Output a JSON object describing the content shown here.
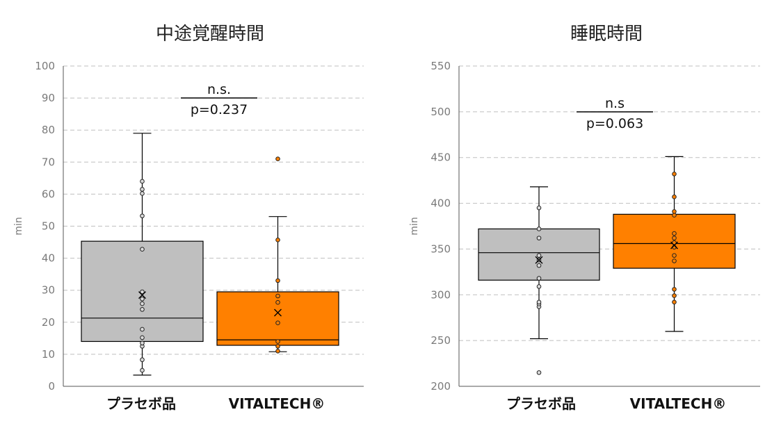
{
  "chart_data": [
    {
      "type": "box",
      "title": "中途覚醒時間",
      "ylabel": "min",
      "ylim": [
        0,
        100
      ],
      "yticks": [
        0,
        10,
        20,
        30,
        40,
        50,
        60,
        70,
        80,
        90,
        100
      ],
      "grid": true,
      "categories": [
        "プラセボ品",
        "VITALTECH®"
      ],
      "annotation": {
        "label": "n.s.",
        "p": "p=0.237"
      },
      "series": [
        {
          "color": "#bfbfbf",
          "whisker_low": 3.5,
          "q1": 14,
          "median": 21.3,
          "q3": 45.3,
          "whisker_high": 79,
          "mean": 28.5,
          "points": [
            5,
            8.3,
            12.5,
            13.5,
            15.2,
            17.8,
            24,
            25.8,
            27.3,
            29.5,
            42.8,
            53.2,
            60.2,
            61.5,
            64
          ]
        },
        {
          "color": "#ff8000",
          "whisker_low": 10.8,
          "q1": 12.8,
          "median": 14.5,
          "q3": 29.5,
          "whisker_high": 53,
          "mean": 23,
          "points": [
            11,
            12.5,
            14,
            19.8,
            26.2,
            28.2,
            33,
            45.7,
            71
          ]
        }
      ]
    },
    {
      "type": "box",
      "title": "睡眠時間",
      "ylabel": "min",
      "ylim": [
        200,
        550
      ],
      "yticks": [
        200,
        250,
        300,
        350,
        400,
        450,
        500,
        550
      ],
      "grid": true,
      "categories": [
        "プラセボ品",
        "VITALTECH®"
      ],
      "annotation": {
        "label": "n.s",
        "p": "p=0.063"
      },
      "series": [
        {
          "color": "#bfbfbf",
          "whisker_low": 252,
          "q1": 316,
          "median": 346,
          "q3": 372,
          "whisker_high": 418,
          "mean": 338,
          "points": [
            215,
            287,
            290,
            292,
            309,
            318,
            332,
            338,
            343,
            362,
            372,
            395
          ]
        },
        {
          "color": "#ff8000",
          "whisker_low": 260,
          "q1": 329,
          "median": 356,
          "q3": 388,
          "whisker_high": 451,
          "mean": 354,
          "points": [
            292,
            299,
            306,
            337,
            343,
            352,
            357,
            362,
            367,
            387,
            391,
            407,
            432
          ]
        }
      ]
    }
  ]
}
